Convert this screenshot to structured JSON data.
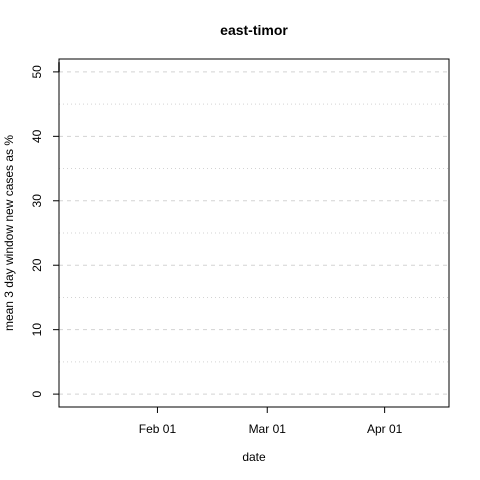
{
  "chart_data": {
    "type": "line",
    "title": "east-timor",
    "xlabel": "date",
    "ylabel": "mean  3  day window new cases as %",
    "x_range": [
      "2020-01-06",
      "2020-04-18"
    ],
    "ylim": [
      -2,
      52
    ],
    "x_ticks": [
      {
        "date": "2020-02-01",
        "label": "Feb 01"
      },
      {
        "date": "2020-03-01",
        "label": "Mar 01"
      },
      {
        "date": "2020-04-01",
        "label": "Apr 01"
      }
    ],
    "y_ticks": [
      0,
      10,
      20,
      30,
      40,
      50
    ],
    "grid": {
      "major_dashed": [
        0,
        10,
        20,
        30,
        40,
        50
      ],
      "minor_dotted": [
        5,
        15,
        25,
        35,
        45
      ]
    },
    "series": [
      {
        "color": "#000000",
        "points": [
          {
            "x": "2020-01-06",
            "y": 50
          },
          {
            "x": "2020-01-06",
            "y": 51.5
          }
        ]
      }
    ]
  }
}
